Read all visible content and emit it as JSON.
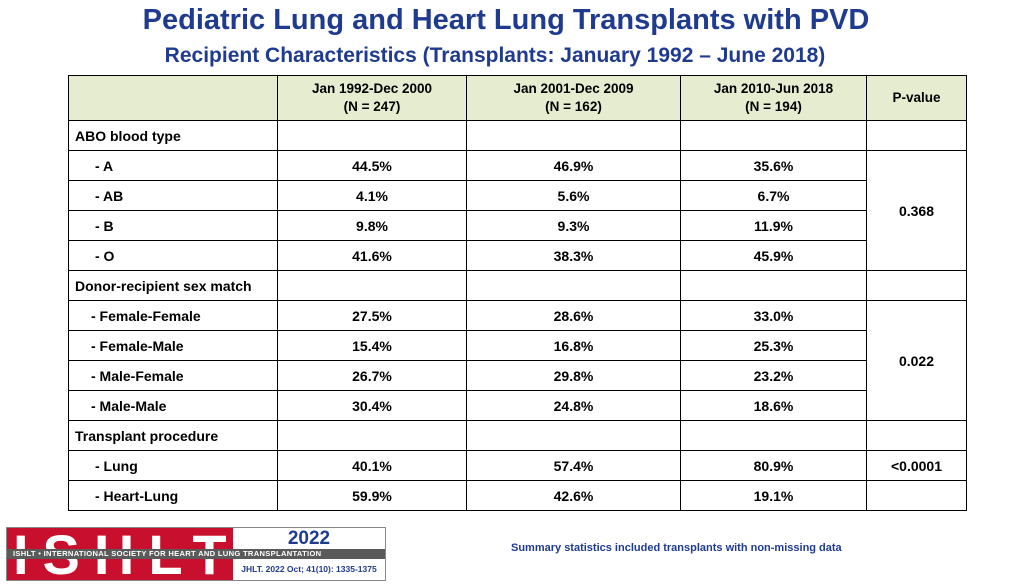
{
  "title": "Pediatric Lung and Heart Lung Transplants with PVD",
  "subtitle": "Recipient Characteristics (Transplants: January 1992 – June 2018)",
  "table": {
    "headers": [
      {
        "line1": "Jan 1992-Dec 2000",
        "line2": "(N = 247)"
      },
      {
        "line1": "Jan 2001-Dec 2009",
        "line2": "(N = 162)"
      },
      {
        "line1": "Jan 2010-Jun 2018",
        "line2": "(N = 194)"
      },
      {
        "line1": "P-value",
        "line2": ""
      }
    ],
    "abo": {
      "label": "ABO blood type",
      "rows": [
        {
          "label": "- A",
          "values": [
            "44.5%",
            "46.9%",
            "35.6%"
          ]
        },
        {
          "label": "- AB",
          "values": [
            "4.1%",
            "5.6%",
            "6.7%"
          ]
        },
        {
          "label": "- B",
          "values": [
            "9.8%",
            "9.3%",
            "11.9%"
          ]
        },
        {
          "label": "- O",
          "values": [
            "41.6%",
            "38.3%",
            "45.9%"
          ]
        }
      ],
      "pvalue": "0.368"
    },
    "sex": {
      "label": "Donor-recipient sex match",
      "rows": [
        {
          "label": "- Female-Female",
          "values": [
            "27.5%",
            "28.6%",
            "33.0%"
          ]
        },
        {
          "label": "- Female-Male",
          "values": [
            "15.4%",
            "16.8%",
            "25.3%"
          ]
        },
        {
          "label": "- Male-Female",
          "values": [
            "26.7%",
            "29.8%",
            "23.2%"
          ]
        },
        {
          "label": "- Male-Male",
          "values": [
            "30.4%",
            "24.8%",
            "18.6%"
          ]
        }
      ],
      "pvalue": "0.022"
    },
    "procedure": {
      "label": "Transplant procedure",
      "rows": [
        {
          "label": "- Lung",
          "values": [
            "40.1%",
            "57.4%",
            "80.9%"
          ]
        },
        {
          "label": "- Heart-Lung",
          "values": [
            "59.9%",
            "42.6%",
            "19.1%"
          ]
        }
      ],
      "pvalue": "<0.0001"
    }
  },
  "logo": {
    "letters": "ISHLT",
    "band": "ISHLT • INTERNATIONAL SOCIETY FOR HEART AND LUNG TRANSPLANTATION",
    "year": "2022",
    "citation": "JHLT. 2022 Oct; 41(10): 1335-1375"
  },
  "footnote": "Summary statistics included transplants with non-missing data",
  "colors": {
    "title": "#1f3b8f",
    "header_bg": "#e6ecd0",
    "logo_red": "#c8102e"
  }
}
